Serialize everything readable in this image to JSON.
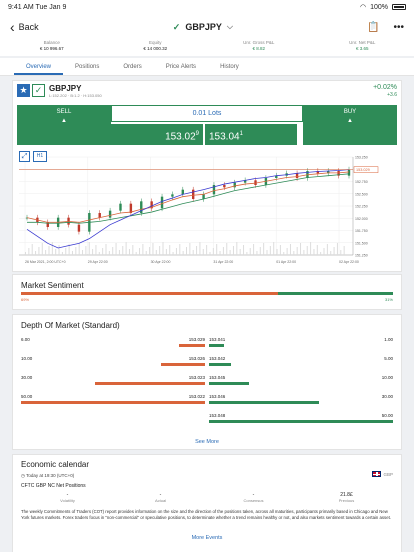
{
  "status": {
    "time": "9:41 AM",
    "date": "Tue Jan 9",
    "battery": "100%"
  },
  "nav": {
    "back": "Back",
    "symbol": "GBPJPY"
  },
  "account": [
    {
      "label": "Balance",
      "value": "€ 10 996.67",
      "green": false
    },
    {
      "label": "Equity",
      "value": "€ 14 000.32",
      "green": false
    },
    {
      "label": "Unr. Gross P&L",
      "value": "€ 8.82",
      "green": true
    },
    {
      "label": "Unr. Net P&L",
      "value": "€ 3.65",
      "green": true
    }
  ],
  "tabs": [
    "Overview",
    "Positions",
    "Orders",
    "Price Alerts",
    "History"
  ],
  "instrument": {
    "symbol": "GBPJPY",
    "sub": "L:152.202 · B:1.2 · H:153.050",
    "change_pct": "+0.02%",
    "change_abs": "+3.6",
    "sell_label": "SELL",
    "buy_label": "BUY",
    "lots": "0.01 Lots",
    "sell_price": "153.02",
    "sell_price_sup": "9",
    "buy_price": "153.04",
    "buy_price_sup": "1",
    "timeframe": "H1"
  },
  "chart_data": {
    "type": "line",
    "title": "",
    "x_labels": [
      "26 Mar 2021, 2:00 UTC+0",
      "29 Apr 22:00",
      "30 Apr 22:00",
      "31 Apr 22:00",
      "01 Apr 22:00",
      "02 Apr 22:00"
    ],
    "y_ticks": [
      "153.250",
      "153.000",
      "152.750",
      "152.500",
      "152.250",
      "152.000",
      "151.750",
      "151.500",
      "151.250"
    ],
    "ylim": [
      151.2,
      153.3
    ],
    "close": [
      152.0,
      151.9,
      151.8,
      152.0,
      151.85,
      151.7,
      152.1,
      152.0,
      152.15,
      152.3,
      152.1,
      152.35,
      152.2,
      152.45,
      152.5,
      152.6,
      152.4,
      152.5,
      152.7,
      152.65,
      152.75,
      152.8,
      152.7,
      152.85,
      152.9,
      152.95,
      152.85,
      153.0,
      152.95,
      153.0,
      152.9,
      153.03
    ],
    "series": [
      {
        "name": "",
        "color": "#d9643a",
        "values": [
          152.0,
          151.95,
          151.9,
          151.9,
          151.92,
          151.9,
          151.95,
          152.0,
          152.05,
          152.1,
          152.12,
          152.18,
          152.22,
          152.3,
          152.38,
          152.45,
          152.48,
          152.5,
          152.58,
          152.62,
          152.68,
          152.72,
          152.74,
          152.78,
          152.82,
          152.86,
          152.88,
          152.92,
          152.94,
          152.96,
          152.96,
          152.98
        ]
      },
      {
        "name": "",
        "color": "#2e8b57",
        "values": [
          151.9,
          151.9,
          151.88,
          151.88,
          151.9,
          151.88,
          151.9,
          151.92,
          151.96,
          152.0,
          152.04,
          152.08,
          152.12,
          152.18,
          152.24,
          152.3,
          152.35,
          152.4,
          152.46,
          152.52,
          152.58,
          152.62,
          152.66,
          152.7,
          152.74,
          152.78,
          152.82,
          152.86,
          152.88,
          152.9,
          152.92,
          152.94
        ]
      },
      {
        "name": "",
        "color": "#3a3ad0",
        "values": [
          151.75,
          151.6,
          151.45,
          151.35,
          151.4,
          151.45,
          151.55,
          151.7,
          151.85,
          151.95,
          152.05,
          152.15,
          152.25,
          152.35,
          152.42,
          152.5,
          152.55,
          152.6,
          152.66,
          152.72,
          152.76,
          152.8,
          152.84,
          152.86,
          152.9,
          152.92,
          152.95,
          152.97,
          152.99,
          153.0,
          153.01,
          153.03
        ]
      }
    ],
    "current_price": "153.029",
    "grid": true
  },
  "sentiment": {
    "title": "Market Sentiment",
    "sell_pct": 69,
    "buy_pct": 31,
    "sell_label": "69%",
    "buy_label": "31%"
  },
  "depth": {
    "title": "Depth Of Market (Standard)",
    "rows": [
      {
        "bid_qty": "6.00",
        "bid": "153.029",
        "ask": "153.041",
        "ask_qty": "1.00",
        "bid_frac": 0.14,
        "ask_frac": 0.08
      },
      {
        "bid_qty": "10.00",
        "bid": "153.026",
        "ask": "153.042",
        "ask_qty": "5.00",
        "bid_frac": 0.24,
        "ask_frac": 0.12
      },
      {
        "bid_qty": "30.00",
        "bid": "153.023",
        "ask": "153.045",
        "ask_qty": "10.00",
        "bid_frac": 0.6,
        "ask_frac": 0.22
      },
      {
        "bid_qty": "50.00",
        "bid": "153.022",
        "ask": "153.046",
        "ask_qty": "30.00",
        "bid_frac": 1.0,
        "ask_frac": 0.6
      },
      {
        "bid_qty": "",
        "bid": "",
        "ask": "153.048",
        "ask_qty": "50.00",
        "bid_frac": 0,
        "ask_frac": 1.0
      }
    ],
    "see_more": "See More"
  },
  "calendar": {
    "title": "Economic calendar",
    "time": "Today at 19:30 (UTC+0)",
    "currency": "GBP",
    "event": "CFTC GBP NC Net Positions",
    "cols": [
      {
        "label": "Volatility",
        "value": "-"
      },
      {
        "label": "Actual",
        "value": "-"
      },
      {
        "label": "Consensus",
        "value": "-"
      },
      {
        "label": "Previous",
        "value": "21.8£"
      }
    ],
    "desc": "The weekly Commitments of Traders (COT) report provides information on the size and the direction of the positions taken, across all maturities, participants primarily based in Chicago and New York futures markets. Forex traders focus in \"non-commercial\" or speculative positions, to determinate whether a trend remains healthy or not, and also markets sentiment towards a certain asset.",
    "more": "More Events"
  }
}
